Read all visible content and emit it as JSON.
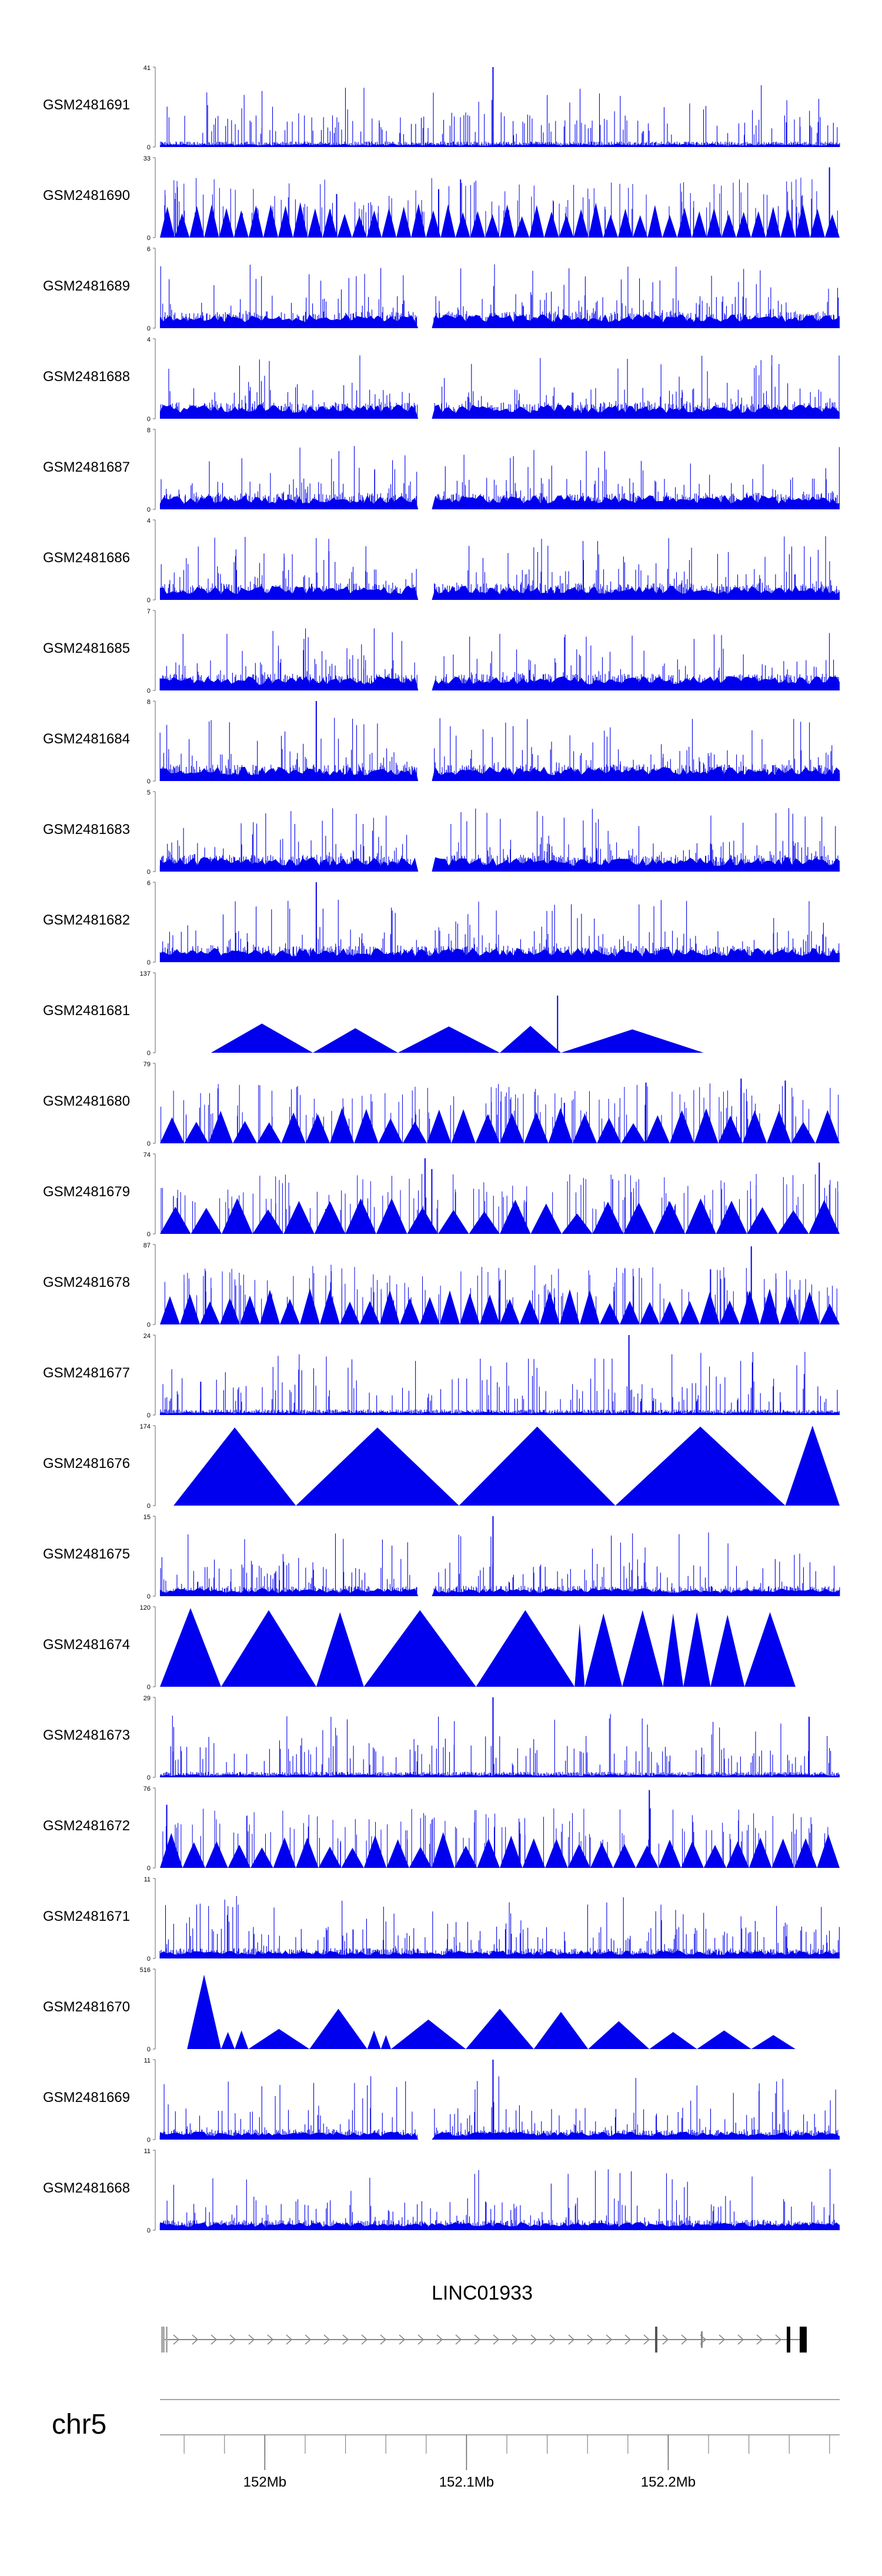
{
  "chart_data": {
    "type": "area",
    "title": "",
    "fill_color": "#0000ee",
    "genome_axis": {
      "chromosome": "chr5",
      "range_mb": [
        151.948,
        152.285
      ],
      "tick_labels": [
        {
          "value_mb": 152.0,
          "label": "152Mb"
        },
        {
          "value_mb": 152.1,
          "label": "152.1Mb"
        },
        {
          "value_mb": 152.2,
          "label": "152.2Mb"
        }
      ]
    },
    "gene": {
      "name": "LINC01933",
      "strand": "+"
    },
    "tracks": [
      {
        "name": "GSM2481691",
        "ymax": "41",
        "style": "dense",
        "ymax_value": 41,
        "spikes": [
          {
            "x": 0.49,
            "v": 41
          },
          {
            "x": 0.52,
            "v": 6
          }
        ]
      },
      {
        "name": "GSM2481690",
        "ymax": "33",
        "style": "sparse",
        "ymax_value": 33,
        "n": 46,
        "spikes": [
          {
            "x": 0.26,
            "v": 18
          },
          {
            "x": 0.41,
            "v": 20
          },
          {
            "x": 0.985,
            "v": 29
          }
        ]
      },
      {
        "name": "GSM2481689",
        "ymax": "6",
        "style": "dense",
        "ymax_value": 6,
        "gap": 0.39
      },
      {
        "name": "GSM2481688",
        "ymax": "4",
        "style": "dense",
        "ymax_value": 4,
        "gap": 0.39
      },
      {
        "name": "GSM2481687",
        "ymax": "8",
        "style": "dense",
        "ymax_value": 8,
        "gap": 0.39
      },
      {
        "name": "GSM2481686",
        "ymax": "4",
        "style": "dense",
        "ymax_value": 4,
        "gap": 0.39
      },
      {
        "name": "GSM2481685",
        "ymax": "7",
        "style": "dense",
        "ymax_value": 7,
        "gap": 0.39
      },
      {
        "name": "GSM2481684",
        "ymax": "8",
        "style": "dense",
        "ymax_value": 8,
        "gap": 0.39,
        "spikes": [
          {
            "x": 0.23,
            "v": 8
          }
        ]
      },
      {
        "name": "GSM2481683",
        "ymax": "5",
        "style": "dense",
        "ymax_value": 5,
        "gap": 0.39
      },
      {
        "name": "GSM2481682",
        "ymax": "6",
        "style": "dense",
        "ymax_value": 6,
        "spikes": [
          {
            "x": 0.23,
            "v": 6
          }
        ]
      },
      {
        "name": "GSM2481681",
        "ymax": "137",
        "style": "peaks",
        "ymax_value": 137,
        "peaks": [
          [
            0.075,
            0.225,
            50
          ],
          [
            0.225,
            0.35,
            42
          ],
          [
            0.35,
            0.5,
            45
          ],
          [
            0.5,
            0.59,
            46
          ],
          [
            0.59,
            0.8,
            40
          ]
        ],
        "spikes": [
          {
            "x": 0.15,
            "v": 28
          },
          {
            "x": 0.585,
            "v": 98
          }
        ]
      },
      {
        "name": "GSM2481680",
        "ymax": "79",
        "style": "sparse",
        "ymax_value": 79,
        "n": 28,
        "spikes": [
          {
            "x": 0.595,
            "v": 40
          },
          {
            "x": 0.715,
            "v": 60
          },
          {
            "x": 0.855,
            "v": 64
          },
          {
            "x": 0.92,
            "v": 62
          }
        ]
      },
      {
        "name": "GSM2481679",
        "ymax": "74",
        "style": "sparse",
        "ymax_value": 74,
        "n": 22,
        "spikes": [
          {
            "x": 0.39,
            "v": 70
          },
          {
            "x": 0.4,
            "v": 60
          },
          {
            "x": 0.97,
            "v": 66
          }
        ]
      },
      {
        "name": "GSM2481678",
        "ymax": "87",
        "style": "sparse",
        "ymax_value": 87,
        "n": 34,
        "spikes": [
          {
            "x": 0.81,
            "v": 60
          },
          {
            "x": 0.87,
            "v": 85
          }
        ]
      },
      {
        "name": "GSM2481677",
        "ymax": "24",
        "style": "dense",
        "ymax_value": 24,
        "spikes": [
          {
            "x": 0.69,
            "v": 24
          },
          {
            "x": 0.06,
            "v": 10
          }
        ]
      },
      {
        "name": "GSM2481676",
        "ymax": "174",
        "style": "peaks",
        "ymax_value": 174,
        "peaks": [
          [
            0.02,
            0.2,
            170
          ],
          [
            0.2,
            0.44,
            170
          ],
          [
            0.44,
            0.67,
            172
          ],
          [
            0.67,
            0.92,
            172
          ],
          [
            0.92,
            1.0,
            174
          ]
        ]
      },
      {
        "name": "GSM2481675",
        "ymax": "15",
        "style": "dense",
        "ymax_value": 15,
        "gap": 0.39,
        "spikes": [
          {
            "x": 0.49,
            "v": 15
          }
        ]
      },
      {
        "name": "GSM2481674",
        "ymax": "120",
        "style": "peaks",
        "ymax_value": 120,
        "peaks": [
          [
            0.0,
            0.09,
            118
          ],
          [
            0.09,
            0.23,
            115
          ],
          [
            0.23,
            0.3,
            112
          ],
          [
            0.3,
            0.465,
            115
          ],
          [
            0.465,
            0.61,
            115
          ],
          [
            0.61,
            0.625,
            95
          ],
          [
            0.625,
            0.68,
            110
          ],
          [
            0.68,
            0.74,
            115
          ],
          [
            0.74,
            0.77,
            110
          ],
          [
            0.77,
            0.81,
            112
          ],
          [
            0.81,
            0.86,
            108
          ],
          [
            0.86,
            0.935,
            112
          ]
        ]
      },
      {
        "name": "GSM2481673",
        "ymax": "29",
        "style": "dense",
        "ymax_value": 29,
        "spikes": [
          {
            "x": 0.49,
            "v": 29
          },
          {
            "x": 0.955,
            "v": 22
          }
        ]
      },
      {
        "name": "GSM2481672",
        "ymax": "76",
        "style": "sparse",
        "ymax_value": 76,
        "n": 30,
        "spikes": [
          {
            "x": 0.01,
            "v": 60
          },
          {
            "x": 0.72,
            "v": 74
          }
        ]
      },
      {
        "name": "GSM2481671",
        "ymax": "11",
        "style": "dense",
        "ymax_value": 11
      },
      {
        "name": "GSM2481670",
        "ymax": "516",
        "style": "peaks",
        "ymax_value": 516,
        "peaks": [
          [
            0.04,
            0.09,
            480
          ],
          [
            0.09,
            0.11,
            110
          ],
          [
            0.11,
            0.13,
            120
          ],
          [
            0.13,
            0.22,
            130
          ],
          [
            0.22,
            0.305,
            260
          ],
          [
            0.305,
            0.325,
            120
          ],
          [
            0.325,
            0.34,
            90
          ],
          [
            0.34,
            0.45,
            190
          ],
          [
            0.45,
            0.55,
            260
          ],
          [
            0.55,
            0.63,
            240
          ],
          [
            0.63,
            0.72,
            180
          ],
          [
            0.72,
            0.79,
            110
          ],
          [
            0.79,
            0.87,
            120
          ],
          [
            0.87,
            0.935,
            90
          ]
        ]
      },
      {
        "name": "GSM2481669",
        "ymax": "11",
        "style": "dense",
        "ymax_value": 11,
        "gap": 0.39,
        "spikes": [
          {
            "x": 0.49,
            "v": 11
          }
        ]
      },
      {
        "name": "GSM2481668",
        "ymax": "11",
        "style": "dense",
        "ymax_value": 11
      }
    ]
  },
  "zero_label": "0"
}
